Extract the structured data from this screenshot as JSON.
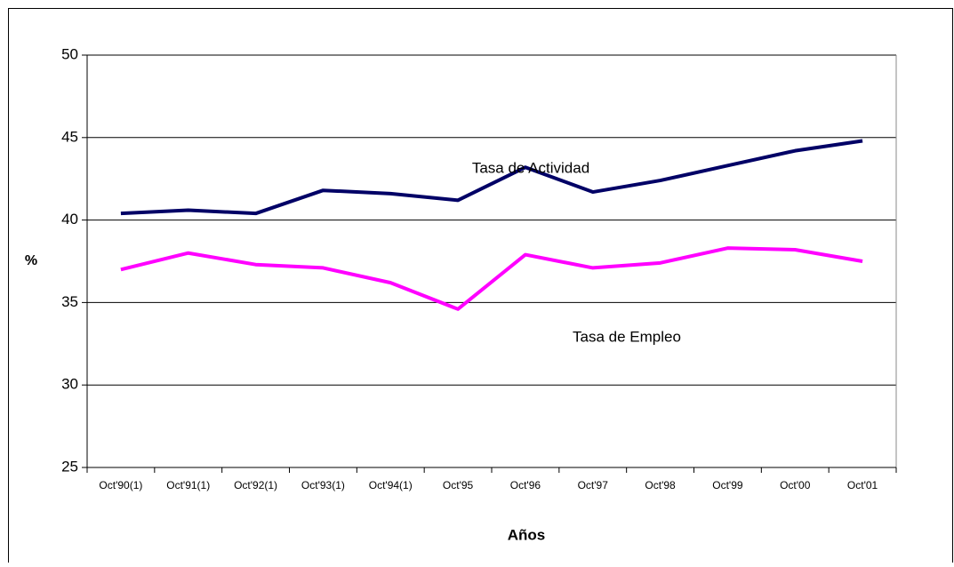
{
  "chart_data": {
    "type": "line",
    "categories": [
      "Oct'90(1)",
      "Oct'91(1)",
      "Oct'92(1)",
      "Oct'93(1)",
      "Oct'94(1)",
      "Oct'95",
      "Oct'96",
      "Oct'97",
      "Oct'98",
      "Oct'99",
      "Oct'00",
      "Oct'01"
    ],
    "series": [
      {
        "name": "Tasa de Actividad",
        "color": "#000066",
        "values": [
          40.4,
          40.6,
          40.4,
          41.8,
          41.6,
          41.2,
          43.2,
          41.7,
          42.4,
          43.3,
          44.2,
          44.8
        ]
      },
      {
        "name": "Tasa de Empleo",
        "color": "#ff00ff",
        "values": [
          37.0,
          38.0,
          37.3,
          37.1,
          36.2,
          34.6,
          37.9,
          37.1,
          37.4,
          38.3,
          38.2,
          37.5
        ]
      }
    ],
    "xlabel": "Años",
    "ylabel": "%",
    "ylim": [
      25,
      50
    ],
    "yticks": [
      25,
      30,
      35,
      40,
      45,
      50
    ],
    "grid": true
  }
}
